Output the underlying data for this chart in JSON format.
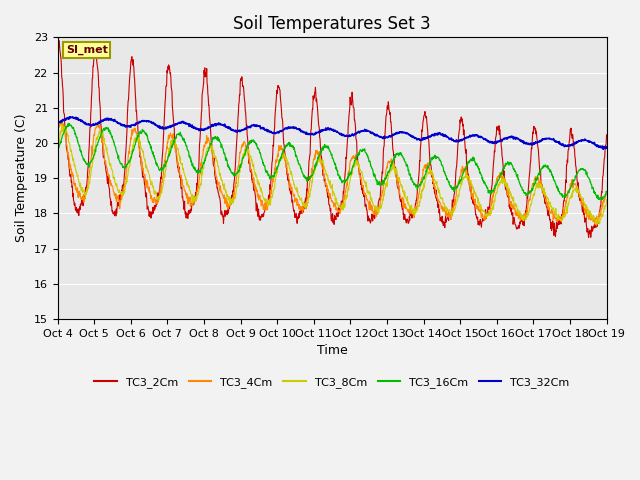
{
  "title": "Soil Temperatures Set 3",
  "xlabel": "Time",
  "ylabel": "Soil Temperature (C)",
  "ylim": [
    15.0,
    23.0
  ],
  "yticks": [
    15.0,
    16.0,
    17.0,
    18.0,
    19.0,
    20.0,
    21.0,
    22.0,
    23.0
  ],
  "xtick_labels": [
    "Oct 4",
    "Oct 5",
    "Oct 6",
    "Oct 7",
    "Oct 8",
    "Oct 9",
    "Oct 10",
    "Oct 11",
    "Oct 12",
    "Oct 13",
    "Oct 14",
    "Oct 15",
    "Oct 16",
    "Oct 17",
    "Oct 18",
    "Oct 19"
  ],
  "series_colors": [
    "#cc0000",
    "#ff8800",
    "#cccc00",
    "#00bb00",
    "#0000cc"
  ],
  "series_names": [
    "TC3_2Cm",
    "TC3_4Cm",
    "TC3_8Cm",
    "TC3_16Cm",
    "TC3_32Cm"
  ],
  "background_color": "#e8e8e8",
  "fig_background": "#f2f2f2",
  "annotation_text": "SI_met",
  "annotation_bg": "#ffff99",
  "annotation_border": "#999900",
  "n_points": 1440,
  "title_fontsize": 12,
  "axis_label_fontsize": 9,
  "tick_fontsize": 8
}
